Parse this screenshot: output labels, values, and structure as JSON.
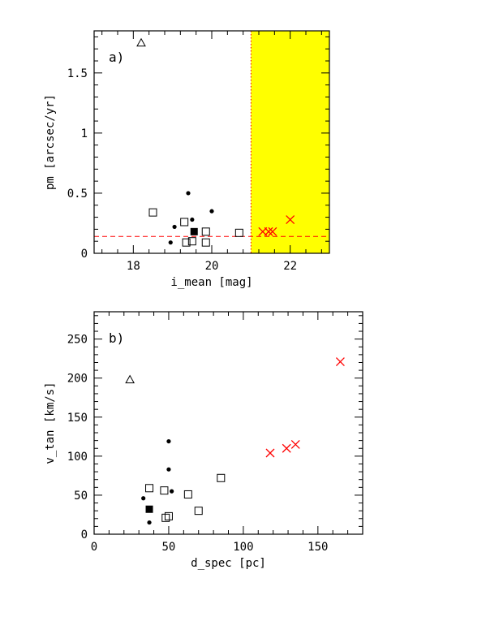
{
  "chart_data": [
    {
      "type": "scatter",
      "panel_label": "a)",
      "xlabel": "i_mean [mag]",
      "ylabel": "pm [arcsec/yr]",
      "xlim": [
        17,
        23
      ],
      "ylim": [
        0,
        1.85
      ],
      "xticks": [
        18,
        20,
        22
      ],
      "yticks": [
        0,
        0.5,
        1,
        1.5
      ],
      "xtick_labels": [
        "18",
        "20",
        "22"
      ],
      "ytick_labels": [
        "0",
        "0.5",
        "1",
        "1.5"
      ],
      "shaded_region": {
        "x": [
          21,
          23
        ],
        "color": "#ffff00"
      },
      "vertical_line": {
        "x": 21,
        "color": "#ff0000",
        "style": "dotted"
      },
      "horizontal_line": {
        "y": 0.14,
        "color": "#ff0000",
        "style": "dashed"
      },
      "series": [
        {
          "marker": "triangle-open",
          "color": "#000000",
          "points": [
            [
              18.2,
              1.75
            ]
          ]
        },
        {
          "marker": "dot",
          "color": "#000000",
          "points": [
            [
              19.4,
              0.5
            ],
            [
              20.0,
              0.35
            ],
            [
              19.05,
              0.22
            ],
            [
              19.5,
              0.28
            ],
            [
              18.95,
              0.09
            ]
          ]
        },
        {
          "marker": "square-open",
          "color": "#000000",
          "points": [
            [
              18.5,
              0.34
            ],
            [
              19.3,
              0.26
            ],
            [
              19.85,
              0.18
            ],
            [
              20.7,
              0.17
            ],
            [
              19.35,
              0.09
            ],
            [
              19.5,
              0.1
            ],
            [
              19.85,
              0.09
            ]
          ]
        },
        {
          "marker": "square-filled",
          "color": "#000000",
          "points": [
            [
              19.55,
              0.18
            ]
          ]
        },
        {
          "marker": "cross",
          "color": "#ff0000",
          "points": [
            [
              21.3,
              0.18
            ],
            [
              21.45,
              0.18
            ],
            [
              21.55,
              0.18
            ],
            [
              22.0,
              0.28
            ]
          ]
        }
      ],
      "grid": false
    },
    {
      "type": "scatter",
      "panel_label": "b)",
      "xlabel": "d_spec [pc]",
      "ylabel": "v_tan [km/s]",
      "xlim": [
        0,
        180
      ],
      "ylim": [
        0,
        285
      ],
      "xticks": [
        0,
        50,
        100,
        150
      ],
      "yticks": [
        0,
        50,
        100,
        150,
        200,
        250
      ],
      "xtick_labels": [
        "0",
        "50",
        "100",
        "150"
      ],
      "ytick_labels": [
        "0",
        "50",
        "100",
        "150",
        "200",
        "250"
      ],
      "series": [
        {
          "marker": "triangle-open",
          "color": "#000000",
          "points": [
            [
              24,
              198
            ]
          ]
        },
        {
          "marker": "dot",
          "color": "#000000",
          "points": [
            [
              50,
              119
            ],
            [
              50,
              83
            ],
            [
              52,
              55
            ],
            [
              33,
              46
            ],
            [
              37,
              15
            ]
          ]
        },
        {
          "marker": "square-open",
          "color": "#000000",
          "points": [
            [
              37,
              59
            ],
            [
              47,
              56
            ],
            [
              63,
              51
            ],
            [
              85,
              72
            ],
            [
              70,
              30
            ],
            [
              50,
              23
            ],
            [
              48,
              21
            ]
          ]
        },
        {
          "marker": "square-filled",
          "color": "#000000",
          "points": [
            [
              37,
              32
            ]
          ]
        },
        {
          "marker": "cross",
          "color": "#ff0000",
          "points": [
            [
              118,
              104
            ],
            [
              129,
              110
            ],
            [
              135,
              115
            ],
            [
              165,
              221
            ]
          ]
        }
      ],
      "grid": false
    }
  ]
}
